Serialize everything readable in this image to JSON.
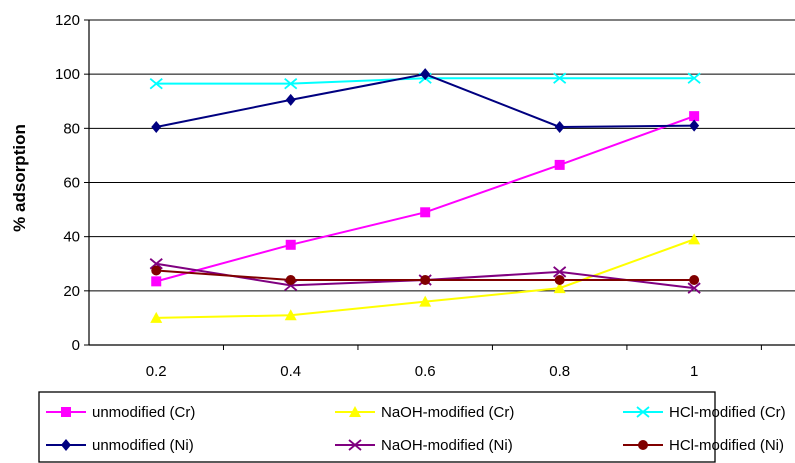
{
  "chart_data": {
    "type": "line",
    "title": "",
    "xlabel": "",
    "ylabel": "% adsorption",
    "x": [
      "0.2",
      "0.4",
      "0.6",
      "0.8",
      "1"
    ],
    "ylim": [
      0,
      120
    ],
    "yticks": [
      0,
      20,
      40,
      60,
      80,
      100,
      120
    ],
    "grid": "horizontal",
    "legend_position": "bottom",
    "series": [
      {
        "name": "unmodified (Cr)",
        "color": "#ff00ff",
        "marker": "square",
        "values": [
          23.5,
          37,
          49,
          66.5,
          84.5
        ]
      },
      {
        "name": "NaOH-modified (Cr)",
        "color": "#ffff00",
        "marker": "triangle",
        "values": [
          10,
          11,
          16,
          21,
          39
        ]
      },
      {
        "name": "HCl-modified (Cr)",
        "color": "#00ffff",
        "marker": "x",
        "values": [
          96.5,
          96.5,
          98.5,
          98.5,
          98.5
        ]
      },
      {
        "name": "unmodified (Ni)",
        "color": "#000080",
        "marker": "diamond",
        "values": [
          80.5,
          90.5,
          100,
          80.5,
          81
        ]
      },
      {
        "name": "NaOH-modified (Ni)",
        "color": "#800080",
        "marker": "x",
        "values": [
          30,
          22,
          24,
          27,
          21
        ]
      },
      {
        "name": "HCl-modified (Ni)",
        "color": "#800000",
        "marker": "circle",
        "values": [
          27.5,
          24,
          24,
          24,
          24
        ]
      }
    ]
  }
}
